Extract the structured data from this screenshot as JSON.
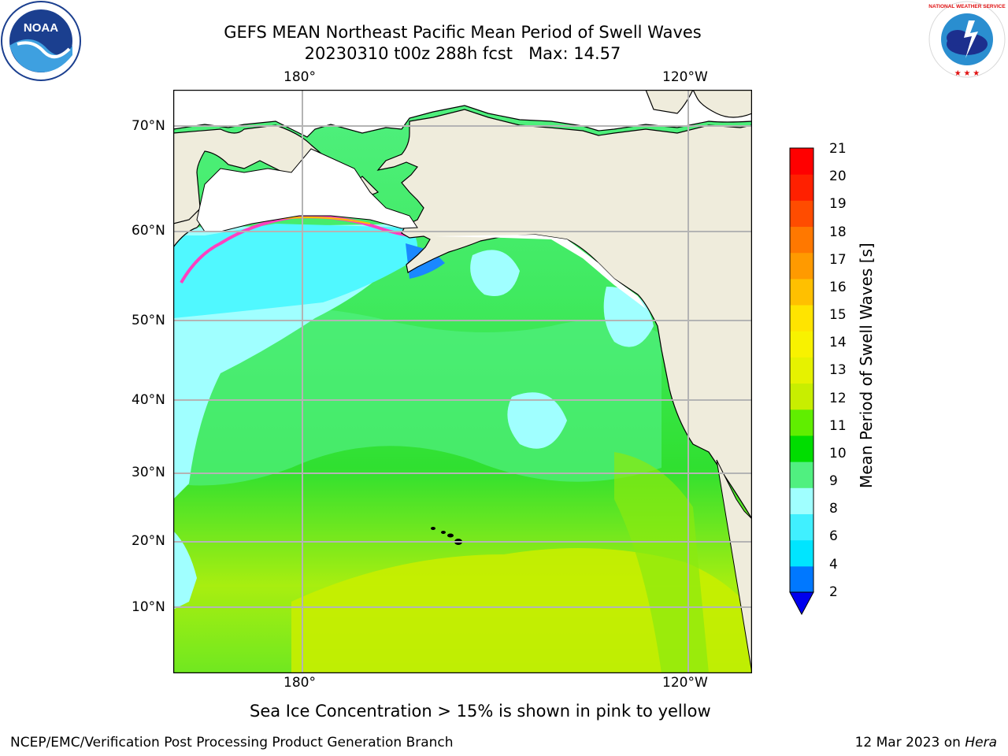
{
  "header": {
    "title_line1": "GEFS MEAN Northeast Pacific Mean Period of Swell Waves",
    "title_line2": "20230310 t00z 288h fcst   Max: 14.57"
  },
  "logos": {
    "left": {
      "icon": "noaa-logo",
      "text": "NOAA"
    },
    "right": {
      "icon": "national-weather-service-logo",
      "text": "NATIONAL WEATHER SERVICE"
    }
  },
  "map": {
    "lon_labels_top": [
      "180°",
      "120°W"
    ],
    "lon_labels_bottom": [
      "180°",
      "120°W"
    ],
    "lat_labels": [
      "70°N",
      "60°N",
      "50°N",
      "40°N",
      "30°N",
      "20°N",
      "10°N"
    ],
    "colors": {
      "land": "#efecdc",
      "grid": "#b4b4b4",
      "coast": "#000000"
    }
  },
  "colorbar": {
    "title": "Mean Period of Swell Waves [s]",
    "ticks": [
      "21",
      "20",
      "19",
      "18",
      "17",
      "16",
      "15",
      "14",
      "13",
      "12",
      "11",
      "10",
      "9",
      "8",
      "6",
      "4",
      "2"
    ],
    "colors_bottom_to_top": [
      "#0078ff",
      "#00e5ff",
      "#40f0ff",
      "#a0ffff",
      "#50f080",
      "#00dd00",
      "#60ee00",
      "#c8ee00",
      "#e6f200",
      "#f8f200",
      "#ffe400",
      "#ffc000",
      "#ff9a00",
      "#ff7800",
      "#ff4c00",
      "#ff2000",
      "#ff0000"
    ],
    "under_color": "#0000ee"
  },
  "notes": {
    "sea_ice": "Sea Ice Concentration > 15% is shown in pink to yellow"
  },
  "footer": {
    "left": "NCEP/EMC/Verification Post Processing Product Generation Branch",
    "right_date": "12 Mar 2023 on ",
    "right_machine": "Hera"
  }
}
